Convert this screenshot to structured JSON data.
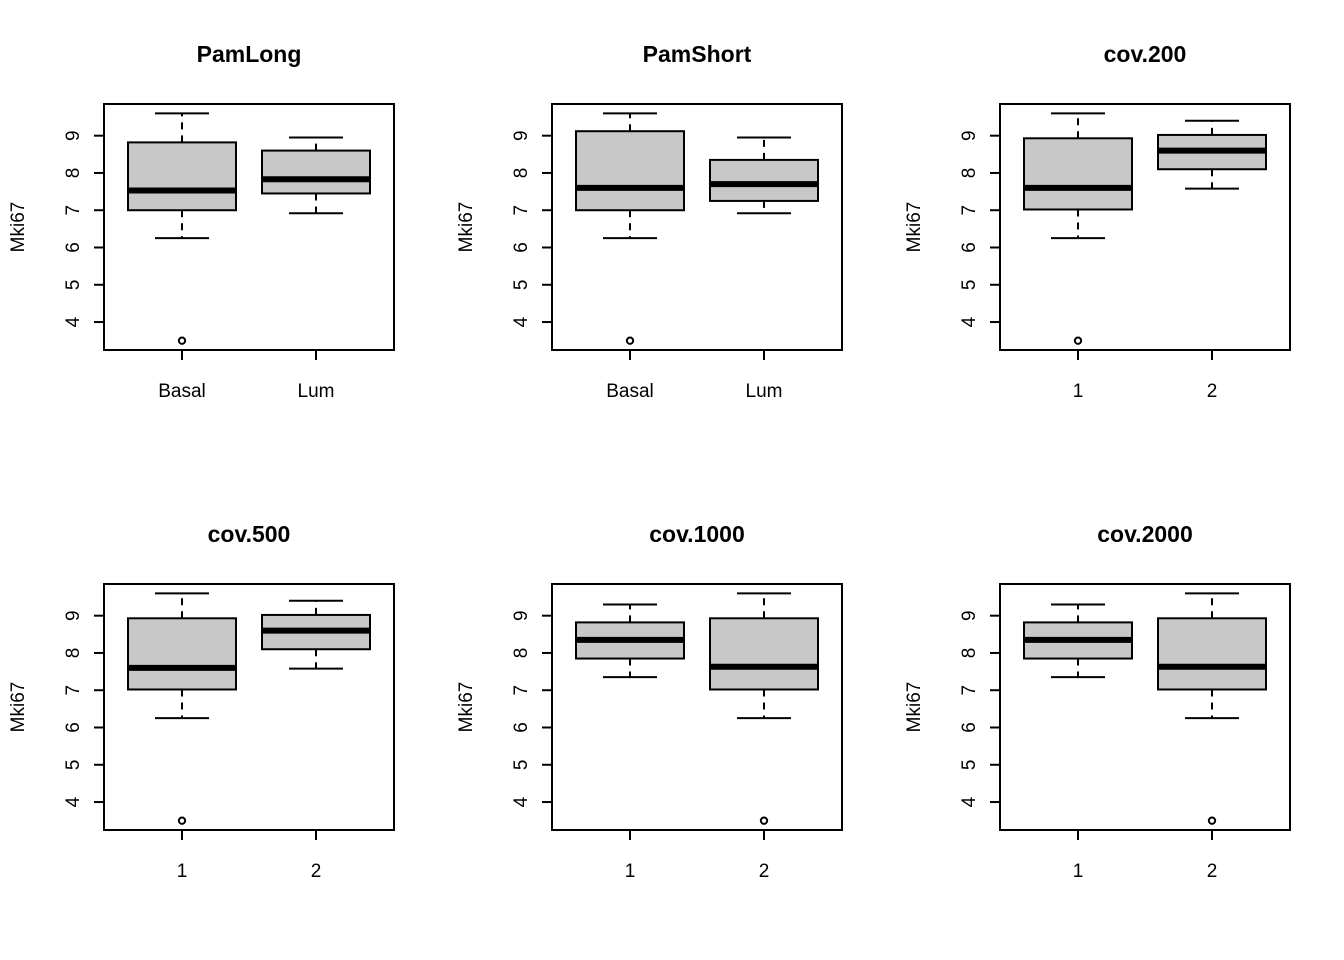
{
  "colors": {
    "box_fill": "#c8c8c8",
    "line": "#000000",
    "background": "#ffffff"
  },
  "chart_data": [
    {
      "type": "boxplot",
      "title": "PamLong",
      "ylabel": "Mki67",
      "xlabel": "",
      "categories": [
        "Basal",
        "Lum"
      ],
      "yticks": [
        "4",
        "5",
        "6",
        "7",
        "8",
        "9"
      ],
      "ylim": [
        3.25,
        9.85
      ],
      "boxes": [
        {
          "whisker_low": 6.25,
          "q1": 7.0,
          "median": 7.53,
          "q3": 8.82,
          "whisker_high": 9.6,
          "outliers": [
            3.5
          ]
        },
        {
          "whisker_low": 6.92,
          "q1": 7.45,
          "median": 7.83,
          "q3": 8.6,
          "whisker_high": 8.95,
          "outliers": []
        }
      ]
    },
    {
      "type": "boxplot",
      "title": "PamShort",
      "ylabel": "Mki67",
      "xlabel": "",
      "categories": [
        "Basal",
        "Lum"
      ],
      "yticks": [
        "4",
        "5",
        "6",
        "7",
        "8",
        "9"
      ],
      "ylim": [
        3.25,
        9.85
      ],
      "boxes": [
        {
          "whisker_low": 6.25,
          "q1": 7.0,
          "median": 7.6,
          "q3": 9.12,
          "whisker_high": 9.6,
          "outliers": [
            3.5
          ]
        },
        {
          "whisker_low": 6.92,
          "q1": 7.25,
          "median": 7.7,
          "q3": 8.35,
          "whisker_high": 8.95,
          "outliers": []
        }
      ]
    },
    {
      "type": "boxplot",
      "title": "cov.200",
      "ylabel": "Mki67",
      "xlabel": "",
      "categories": [
        "1",
        "2"
      ],
      "yticks": [
        "4",
        "5",
        "6",
        "7",
        "8",
        "9"
      ],
      "ylim": [
        3.25,
        9.85
      ],
      "boxes": [
        {
          "whisker_low": 6.25,
          "q1": 7.02,
          "median": 7.6,
          "q3": 8.93,
          "whisker_high": 9.6,
          "outliers": [
            3.5
          ]
        },
        {
          "whisker_low": 7.58,
          "q1": 8.1,
          "median": 8.6,
          "q3": 9.02,
          "whisker_high": 9.4,
          "outliers": []
        }
      ]
    },
    {
      "type": "boxplot",
      "title": "cov.500",
      "ylabel": "Mki67",
      "xlabel": "",
      "categories": [
        "1",
        "2"
      ],
      "yticks": [
        "4",
        "5",
        "6",
        "7",
        "8",
        "9"
      ],
      "ylim": [
        3.25,
        9.85
      ],
      "boxes": [
        {
          "whisker_low": 6.25,
          "q1": 7.02,
          "median": 7.6,
          "q3": 8.93,
          "whisker_high": 9.6,
          "outliers": [
            3.5
          ]
        },
        {
          "whisker_low": 7.58,
          "q1": 8.1,
          "median": 8.6,
          "q3": 9.02,
          "whisker_high": 9.4,
          "outliers": []
        }
      ]
    },
    {
      "type": "boxplot",
      "title": "cov.1000",
      "ylabel": "Mki67",
      "xlabel": "",
      "categories": [
        "1",
        "2"
      ],
      "yticks": [
        "4",
        "5",
        "6",
        "7",
        "8",
        "9"
      ],
      "ylim": [
        3.25,
        9.85
      ],
      "boxes": [
        {
          "whisker_low": 7.35,
          "q1": 7.85,
          "median": 8.35,
          "q3": 8.82,
          "whisker_high": 9.3,
          "outliers": []
        },
        {
          "whisker_low": 6.25,
          "q1": 7.02,
          "median": 7.63,
          "q3": 8.93,
          "whisker_high": 9.6,
          "outliers": [
            3.5
          ]
        }
      ]
    },
    {
      "type": "boxplot",
      "title": "cov.2000",
      "ylabel": "Mki67",
      "xlabel": "",
      "categories": [
        "1",
        "2"
      ],
      "yticks": [
        "4",
        "5",
        "6",
        "7",
        "8",
        "9"
      ],
      "ylim": [
        3.25,
        9.85
      ],
      "boxes": [
        {
          "whisker_low": 7.35,
          "q1": 7.85,
          "median": 8.35,
          "q3": 8.82,
          "whisker_high": 9.3,
          "outliers": []
        },
        {
          "whisker_low": 6.25,
          "q1": 7.02,
          "median": 7.63,
          "q3": 8.93,
          "whisker_high": 9.6,
          "outliers": [
            3.5
          ]
        }
      ]
    }
  ]
}
